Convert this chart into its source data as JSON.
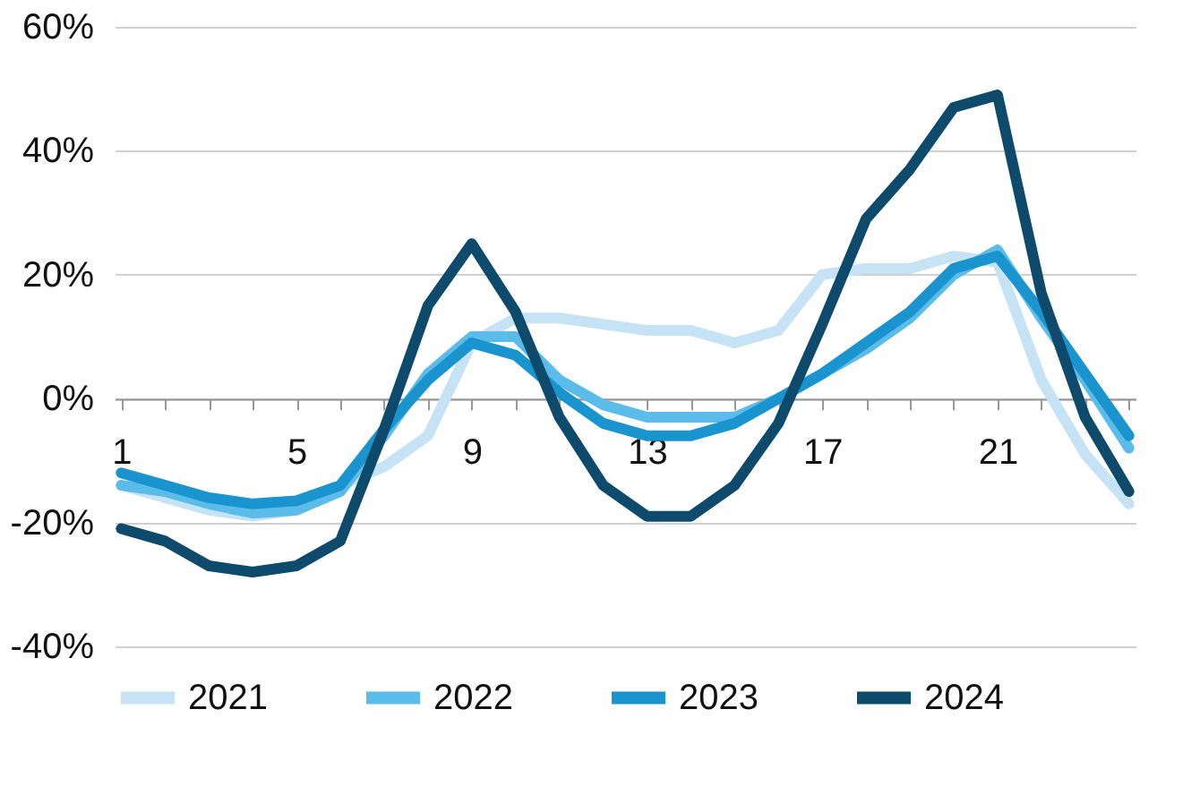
{
  "chart_data": {
    "type": "line",
    "categories": [
      "1",
      null,
      null,
      null,
      "5",
      null,
      null,
      null,
      "9",
      null,
      null,
      null,
      "13",
      null,
      null,
      null,
      "17",
      null,
      null,
      null,
      "21",
      null,
      null,
      null
    ],
    "ylim": [
      -40,
      60
    ],
    "yticks": [
      {
        "value": -40,
        "label": "-40%"
      },
      {
        "value": -20,
        "label": "-20%"
      },
      {
        "value": 0,
        "label": "0%"
      },
      {
        "value": 20,
        "label": "20%"
      },
      {
        "value": 40,
        "label": "40%"
      },
      {
        "value": 60,
        "label": "60%"
      }
    ],
    "grid": "y",
    "legend": "bottom",
    "line_style": "solid",
    "marker": "none",
    "series": [
      {
        "name": "2021",
        "color": "#c5e3f5",
        "values": [
          -14,
          -16,
          -18,
          -19,
          -18,
          -14,
          -11,
          -6,
          9,
          13,
          13,
          12,
          11,
          11,
          9,
          11,
          20,
          21,
          21,
          23,
          22,
          3,
          -9,
          -17
        ]
      },
      {
        "name": "2022",
        "color": "#5bbce9",
        "values": [
          -14,
          -15,
          -17,
          -18.5,
          -18,
          -15,
          -6,
          4,
          10,
          10,
          3,
          -1,
          -3,
          -3,
          -3,
          0,
          4,
          8,
          13,
          20,
          24,
          13,
          3,
          -8
        ]
      },
      {
        "name": "2023",
        "color": "#1a94cf",
        "values": [
          -12,
          -14,
          -16,
          -17,
          -16.5,
          -14,
          -5,
          3,
          9,
          7,
          1,
          -4,
          -6,
          -6,
          -4,
          0,
          4,
          9,
          14,
          21,
          23,
          14,
          4,
          -6
        ]
      },
      {
        "name": "2024",
        "color": "#0d4a6b",
        "values": [
          -21,
          -23,
          -27,
          -28,
          -27,
          -23,
          -5,
          15,
          25,
          14,
          -3,
          -14,
          -19,
          -19,
          -14,
          -4,
          12,
          29,
          37,
          47,
          49,
          17,
          -3,
          -15
        ]
      }
    ]
  }
}
